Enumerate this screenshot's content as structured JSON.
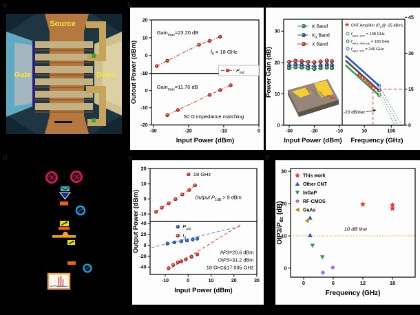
{
  "figure": {
    "panel_labels": {
      "a": "a",
      "b": "b",
      "c": "c",
      "d": "d",
      "e": "e",
      "f": "f"
    }
  },
  "colors": {
    "red": "#e8392b",
    "blue": "#2456c4",
    "green": "#2e9e4f",
    "gray": "#4a4a4a",
    "purple": "#a66ede",
    "olive": "#b8860b",
    "ref_orange": "#f5872e",
    "crimson": "#d6145f",
    "teal": "#3fb8af",
    "navy": "#1b2a86",
    "orange": "#f2600a",
    "amber": "#f5a01e",
    "sky_blue": "#17a7e3",
    "yellow": "#e8e400",
    "analyzer_frame": "#e8a44a",
    "label_yellow": "#f4e93d"
  },
  "panel_a": {
    "source": "Source",
    "gate": "Gate",
    "drain": "Drain"
  },
  "panel_d": {
    "items": [
      {
        "name": "signal-generator-1",
        "color": "#d6145f"
      },
      {
        "name": "signal-generator-2",
        "color": "#d6145f"
      },
      {
        "name": "power-combiner",
        "color": "#3fb8af"
      },
      {
        "name": "amplifier",
        "color": "#1b2a86"
      },
      {
        "name": "attenuator-1",
        "color": "#f2600a"
      },
      {
        "name": "isolator-1",
        "color": "#17a7e3"
      },
      {
        "name": "variable-attenuator-1",
        "color": "#e8e400"
      },
      {
        "name": "probe-station",
        "color": "#f5a01e"
      },
      {
        "name": "variable-attenuator-2",
        "color": "#e8e400"
      },
      {
        "name": "attenuator-2",
        "color": "#f2600a"
      },
      {
        "name": "isolator-2",
        "color": "#17a7e3"
      },
      {
        "name": "spectrum-analyzer",
        "color": "#e8a44a"
      }
    ]
  },
  "chart_data": [
    {
      "id": "gain_sweep",
      "type": "scatter",
      "panel": "b",
      "xlabel": "Input Power (dBm)",
      "ylabel": "Outout Power (dBm)",
      "xlim": [
        -30.5,
        0
      ],
      "xticks": [
        -30,
        -20,
        -10,
        0
      ],
      "legend": {
        "segs": [
          [
            "i",
            "P"
          ],
          [
            "s",
            "out"
          ]
        ]
      },
      "subplots": [
        {
          "ylim": [
            -10,
            20
          ],
          "yticks": [
            20,
            10,
            0,
            -10
          ],
          "series": [
            {
              "name": "P_out_high_gain",
              "color": "#e8392b",
              "style": "dashdot",
              "marker": "circle",
              "points": [
                [
                  -29,
                  -5.9
                ],
                [
                  -26,
                  -2.9
                ],
                [
                  -17,
                  6.1
                ],
                [
                  -14,
                  8.2
                ],
                [
                  -11,
                  10.6
                ]
              ]
            }
          ],
          "ann": [
            {
              "pos": [
                0.05,
                0.27
              ],
              "segs": [
                [
                  "t",
                  "Gain"
                ],
                [
                  "s",
                  "max"
                ],
                [
                  "t",
                  "=23.20 dB"
                ]
              ]
            },
            {
              "pos": [
                0.55,
                0.63
              ],
              "segs": [
                [
                  "i",
                  "f"
                ],
                [
                  "s",
                  "0"
                ],
                [
                  "t",
                  " = 18 GHz"
                ]
              ]
            }
          ]
        },
        {
          "ylim": [
            -20,
            10
          ],
          "yticks": [
            10,
            0,
            -10,
            -20
          ],
          "series": [
            {
              "name": "P_out_matched",
              "color": "#e8392b",
              "style": "dashdot",
              "marker": "circle",
              "points": [
                [
                  -26,
                  -14.3
                ],
                [
                  -23,
                  -11.3
                ],
                [
                  -14,
                  -2.5
                ],
                [
                  -11,
                  0.3
                ],
                [
                  -8,
                  3.1
                ]
              ]
            }
          ],
          "ann": [
            {
              "pos": [
                0.05,
                0.3
              ],
              "segs": [
                [
                  "t",
                  "Gain"
                ],
                [
                  "s",
                  "max"
                ],
                [
                  "t",
                  "=11.70 dB"
                ]
              ]
            },
            {
              "pos": [
                0.3,
                0.87
              ],
              "segs": [
                [
                  "t",
                  "50 Ω impedance matching"
                ]
              ]
            }
          ]
        }
      ]
    },
    {
      "id": "band_gain",
      "type": "line",
      "panel": "c",
      "ylabel": "Power Gain (dB)",
      "xlabel_left": "Input Power (dBm)",
      "xlabel_right": "Frequency (GHz)",
      "left": {
        "xlim": [
          -32.2,
          -8.9
        ],
        "xticks": [
          -30,
          -20,
          -10
        ],
        "ylim": [
          0,
          33.8
        ],
        "yticks": [
          0,
          10,
          20,
          30
        ],
        "x": [
          -30,
          -27.5,
          -25,
          -22.5,
          -20,
          -17.5,
          -15,
          -13
        ],
        "series": [
          {
            "name": "X_band",
            "color": "#e8392b",
            "values": [
              20.2,
              20.5,
              20.4,
              20.2,
              20.1,
              20.3,
              20.6,
              20.4
            ]
          },
          {
            "name": "Ka_band",
            "color": "#2456c4",
            "values": [
              19.0,
              19.3,
              19.2,
              18.9,
              18.8,
              19.0,
              19.3,
              19.1
            ]
          },
          {
            "name": "K_band",
            "color": "#2e9e4f",
            "values": [
              18.2,
              18.5,
              18.4,
              18.1,
              18.0,
              18.2,
              18.4,
              18.2
            ]
          }
        ],
        "legend": [
          {
            "color": "#2e9e4f",
            "segs": [
              [
                "i",
                "K"
              ],
              [
                "t",
                "  Band"
              ]
            ]
          },
          {
            "color": "#2456c4",
            "segs": [
              [
                "i",
                "K"
              ],
              [
                "s",
                "a"
              ],
              [
                "t",
                " Band"
              ]
            ]
          },
          {
            "color": "#e8392b",
            "segs": [
              [
                "i",
                "X"
              ],
              [
                "t",
                "  Band"
              ]
            ]
          }
        ]
      },
      "right": {
        "flim": [
          1.5,
          320
        ],
        "fticks": [
          10,
          100
        ],
        "ylim_right": [
          0,
          44.2
        ],
        "yticks_right": [
          0,
          15,
          30,
          45
        ],
        "lines": [
          {
            "name": "fmax_int",
            "color": "#2456c4",
            "f_end": 246,
            "solid": [
              [
                2,
                29
              ],
              [
                35,
                16.5
              ]
            ]
          },
          {
            "name": "fmax_pad_de",
            "color": "#4a4a4a",
            "f_end": 183,
            "solid": [
              [
                2,
                27
              ],
              [
                35,
                14.5
              ]
            ]
          },
          {
            "name": "fmax_ext",
            "color": "#2e9e4f",
            "f_end": 138,
            "solid": [
              [
                2,
                25
              ],
              [
                35,
                12.5
              ]
            ]
          }
        ],
        "stars": [
          [
            6,
            21
          ],
          [
            7.5,
            20.3
          ],
          [
            9.5,
            19.4
          ],
          [
            12,
            18.3
          ],
          [
            15,
            17.2
          ],
          [
            18.5,
            16.2
          ]
        ],
        "marker_circle": [
          21,
          15.3
        ],
        "crosshair": {
          "f": 21,
          "gain": 15
        },
        "slope_label": "-20 dB/dec",
        "legend_star": {
          "segs": [
            [
              "t",
              "CNT Amplifier ("
            ],
            [
              "i",
              "P"
            ],
            [
              "s",
              "in"
            ],
            [
              "t",
              "@ -25 dBm)"
            ]
          ]
        },
        "legend_lines": [
          {
            "color": "#2e9e4f",
            "segs": [
              [
                "i",
                "f"
              ],
              [
                "s",
                "MAX, EXT"
              ],
              [
                "t",
                " = 138 GHz"
              ]
            ]
          },
          {
            "color": "#4a4a4a",
            "segs": [
              [
                "i",
                "f"
              ],
              [
                "s",
                "MAX, PAD-DE"
              ],
              [
                "t",
                " = 183 GHz"
              ]
            ]
          },
          {
            "color": "#2456c4",
            "segs": [
              [
                "i",
                "f"
              ],
              [
                "s",
                "MAX, INT"
              ],
              [
                "t",
                " = 246 GHz"
              ]
            ]
          }
        ]
      }
    },
    {
      "id": "linearity",
      "type": "scatter",
      "panel": "e",
      "xlabel": "Input Power (dBm)",
      "ylabel": "Output Power (dBm)",
      "xlim": [
        -16.6,
        30
      ],
      "xticks": [
        -10,
        0,
        10,
        20,
        30
      ],
      "subplots": [
        {
          "ylim": [
            -14.9,
            20
          ],
          "yticks": [
            20,
            10,
            0,
            -10
          ],
          "series": [
            {
              "name": "pout_18GHz",
              "color": "#e8392b",
              "style": "dashdot",
              "marker": "circle",
              "points": [
                [
                  -14,
                  -8.5
                ],
                [
                  -11.5,
                  -5.8
                ],
                [
                  -8.5,
                  -3.0
                ],
                [
                  -5.5,
                  -0.2
                ],
                [
                  -2.5,
                  2.9
                ],
                [
                  0.5,
                  5.9
                ],
                [
                  3,
                  8.9
                ]
              ]
            }
          ],
          "leg": [
            {
              "pos": [
                0.36,
                0.11
              ],
              "color": "#e8392b",
              "segs": [
                [
                  "t",
                  "18 GHz"
                ]
              ]
            }
          ],
          "ann": [
            {
              "pos": [
                0.42,
                0.58
              ],
              "segs": [
                [
                  "i",
                  "Output P"
                ],
                [
                  "s",
                  "1dB"
                ],
                [
                  "t",
                  " > 9 dBm"
                ]
              ]
            }
          ]
        },
        {
          "ylim": [
            -53.5,
            43.5
          ],
          "yticks": [
            40,
            20,
            0,
            -20,
            -40
          ],
          "series": [
            {
              "name": "P_out",
              "color": "#2456c4",
              "marker": "circle",
              "points": [
                [
                  -9,
                  3
                ],
                [
                  -6,
                  5.2
                ],
                [
                  -3,
                  7.3
                ],
                [
                  -0.5,
                  8.6
                ],
                [
                  2,
                  10.4
                ],
                [
                  4,
                  12
                ]
              ]
            },
            {
              "name": "I_3",
              "color": "#e8392b",
              "marker": "circle",
              "points": [
                [
                  -8.5,
                  -42
                ],
                [
                  -6.5,
                  -36
                ],
                [
                  -4.5,
                  -31.5
                ],
                [
                  -3,
                  -29.5
                ],
                [
                  -1,
                  -26
                ],
                [
                  1.5,
                  -21
                ],
                [
                  4,
                  -16.8
                ]
              ]
            }
          ],
          "fits": [
            {
              "name": "pout_fit",
              "color": "#4a86e0",
              "points": [
                [
                  -16,
                  -4.3
                ],
                [
                  23,
                  34.7
                ]
              ]
            },
            {
              "name": "im3_fit",
              "color": "#e8392b",
              "points": [
                [
                  -9,
                  -46
                ],
                [
                  23,
                  38
                ]
              ]
            }
          ],
          "leg": [
            {
              "pos": [
                0.26,
                0.1
              ],
              "color": "#2456c4",
              "segs": [
                [
                  "i",
                  "P"
                ],
                [
                  "s",
                  "out"
                ]
              ]
            },
            {
              "pos": [
                0.26,
                0.27
              ],
              "color": "#e8392b",
              "segs": [
                [
                  "i",
                  "I"
                ],
                [
                  "s",
                  "3"
                ]
              ]
            }
          ],
          "ann": [
            {
              "pos": [
                0.97,
                0.62
              ],
              "an": "end",
              "segs": [
                [
                  "i",
                  "IIP"
                ],
                [
                  "t",
                  "3=20.6 dBm"
                ]
              ]
            },
            {
              "pos": [
                0.97,
                0.76
              ],
              "an": "end",
              "segs": [
                [
                  "i",
                  "OIP"
                ],
                [
                  "t",
                  "3=31.2 dBm"
                ]
              ]
            },
            {
              "pos": [
                0.97,
                0.9
              ],
              "an": "end",
              "segs": [
                [
                  "t",
                  "18 GHz&17.995 GHz"
                ]
              ]
            }
          ]
        }
      ]
    },
    {
      "id": "benchmark",
      "type": "scatter",
      "panel": "f",
      "xlabel": "Frequency (GHz)",
      "ylabel_segs": [
        [
          "t",
          "OIP3/"
        ],
        [
          "i",
          "P"
        ],
        [
          "s",
          "dc"
        ],
        [
          "t",
          " (dB)"
        ]
      ],
      "xlim": [
        -2.65,
        22.6
      ],
      "xticks": [
        0,
        6,
        12,
        18
      ],
      "ylim": [
        -2.8,
        30.9
      ],
      "yticks": [
        0,
        10,
        20,
        30
      ],
      "refline": {
        "y": 10,
        "color": "#f5872e",
        "label_segs": [
          [
            "i",
            "10 dB line"
          ]
        ],
        "label_pos": [
          8.2,
          11.6
        ]
      },
      "series": [
        {
          "name": "this-work",
          "label": "This work",
          "marker": "star",
          "color": "#e8392b",
          "points": [
            [
              12,
              19.8
            ],
            [
              18,
              19.6
            ],
            [
              18,
              18.5
            ]
          ]
        },
        {
          "name": "other-cnt",
          "label": "Other CNT",
          "marker": "triup",
          "color": "#2456c4",
          "points": [
            [
              1.3,
              15.6
            ],
            [
              1.3,
              10.2
            ]
          ]
        },
        {
          "name": "ingap",
          "label": "InGaP",
          "marker": "tridown",
          "color": "#2e9e4f",
          "points": [
            [
              1.8,
              7.0
            ],
            [
              3.8,
              3.4
            ]
          ]
        },
        {
          "name": "rf-cmos",
          "label": "RF-CMOS",
          "marker": "diamond",
          "color": "#a66ede",
          "points": [
            [
              3.9,
              -1.4
            ],
            [
              5.9,
              0.2
            ]
          ]
        },
        {
          "name": "gaas",
          "label": "GaAs",
          "marker": "trileft",
          "color": "#b8860b",
          "points": [
            [
              0.7,
              14.7
            ]
          ]
        }
      ]
    }
  ]
}
